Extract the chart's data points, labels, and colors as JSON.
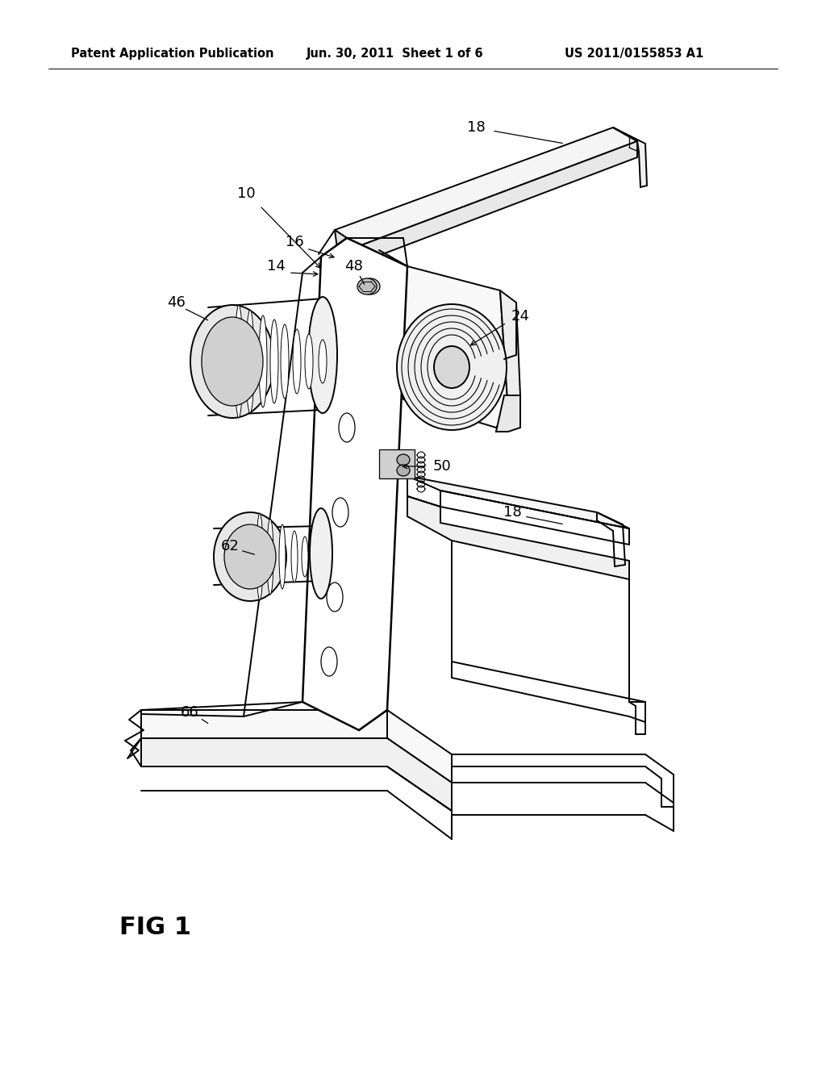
{
  "header_left": "Patent Application Publication",
  "header_mid": "Jun. 30, 2011  Sheet 1 of 6",
  "header_right": "US 2011/0155853 A1",
  "figure_label": "FIG 1",
  "background_color": "#ffffff",
  "line_color": "#000000",
  "lw_main": 1.4,
  "lw_thick": 1.8,
  "lw_thin": 0.9,
  "header_fontsize": 10.5,
  "label_fontsize": 13,
  "fig_label_fontsize": 22
}
